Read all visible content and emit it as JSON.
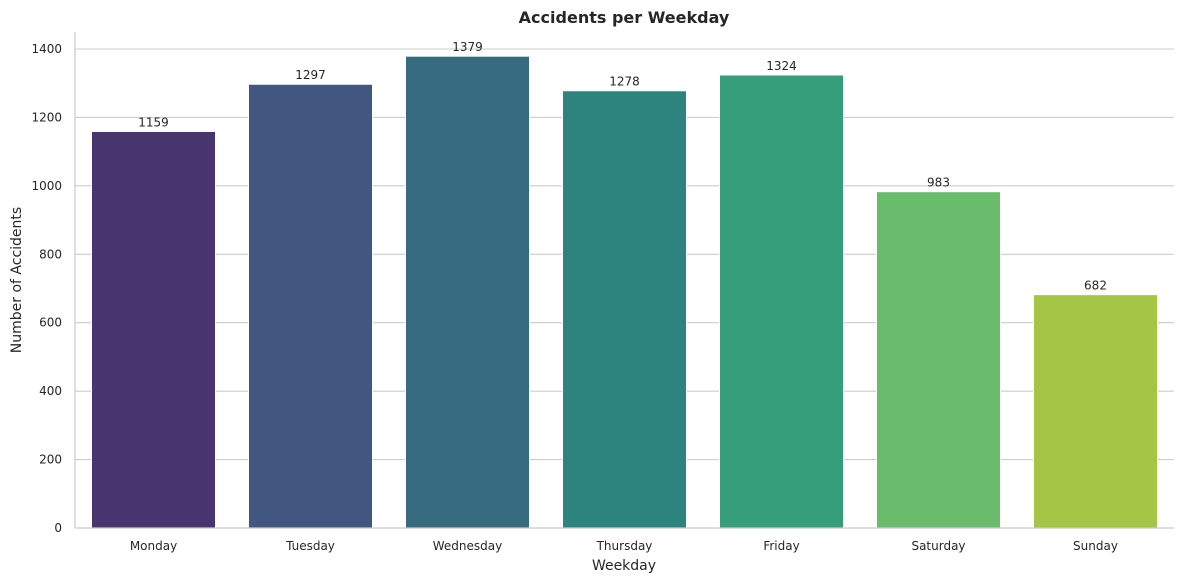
{
  "chart_data": {
    "type": "bar",
    "title": "Accidents per Weekday",
    "xlabel": "Weekday",
    "ylabel": "Number of Accidents",
    "categories": [
      "Monday",
      "Tuesday",
      "Wednesday",
      "Thursday",
      "Friday",
      "Saturday",
      "Sunday"
    ],
    "values": [
      1159,
      1297,
      1379,
      1278,
      1324,
      983,
      682
    ],
    "ylim": [
      0,
      1450
    ],
    "yticks": [
      0,
      200,
      400,
      600,
      800,
      1000,
      1200,
      1400
    ],
    "colors": [
      "#48346f",
      "#42577f",
      "#376b7f",
      "#2d847e",
      "#359d79",
      "#6abc6d",
      "#a4c545"
    ],
    "grid": "y-axis horizontal lines",
    "legend": "none"
  }
}
